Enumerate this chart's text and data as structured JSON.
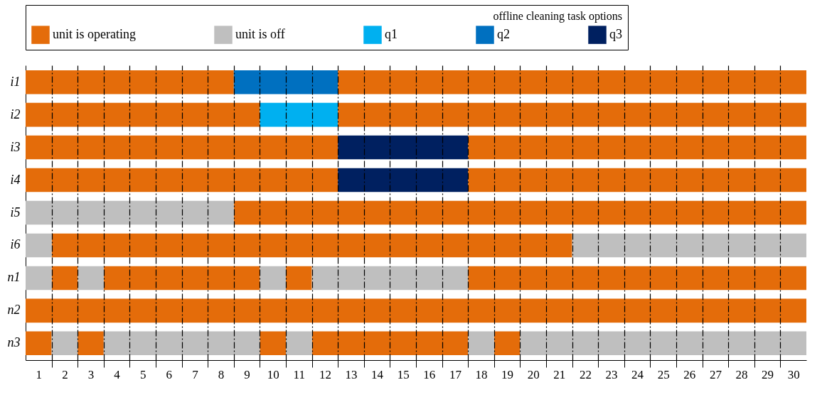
{
  "chart_data": {
    "type": "bar",
    "orientation": "horizontal",
    "legend_title": "offline cleaning task options",
    "legend": "top",
    "grid": "x",
    "categories": [
      "i1",
      "i2",
      "i3",
      "i4",
      "i5",
      "i6",
      "n1",
      "n2",
      "n3"
    ],
    "xlim": [
      0.5,
      30.5
    ],
    "xticks": [
      1,
      2,
      3,
      4,
      5,
      6,
      7,
      8,
      9,
      10,
      11,
      12,
      13,
      14,
      15,
      16,
      17,
      18,
      19,
      20,
      21,
      22,
      23,
      24,
      25,
      26,
      27,
      28,
      29,
      30,
      {
        "value": 1.5,
        "label": null
      },
      {
        "value": 2.5,
        "label": null
      },
      {
        "value": 3.5,
        "label": null
      },
      {
        "value": 4.5,
        "label": null
      },
      {
        "value": 5.5,
        "label": null
      },
      {
        "value": 6.5,
        "label": null
      },
      {
        "value": 7.5,
        "label": null
      },
      {
        "value": 8.5,
        "label": null
      },
      {
        "value": 9.5,
        "label": null
      },
      {
        "value": 10.5,
        "label": null
      },
      {
        "value": 11.5,
        "label": null
      },
      {
        "value": 12.5,
        "label": null
      },
      {
        "value": 13.5,
        "label": null
      },
      {
        "value": 14.5,
        "label": null
      },
      {
        "value": 15.5,
        "label": null
      },
      {
        "value": 16.5,
        "label": null
      },
      {
        "value": 17.5,
        "label": null
      },
      {
        "value": 18.5,
        "label": null
      },
      {
        "value": 19.5,
        "label": null
      },
      {
        "value": 20.5,
        "label": null
      },
      {
        "value": 21.5,
        "label": null
      },
      {
        "value": 22.5,
        "label": null
      },
      {
        "value": 23.5,
        "label": null
      },
      {
        "value": 24.5,
        "label": null
      },
      {
        "value": 25.5,
        "label": null
      },
      {
        "value": 26.5,
        "label": null
      },
      {
        "value": 27.5,
        "label": null
      },
      {
        "value": 28.5,
        "label": null
      },
      {
        "value": 29.5,
        "label": null
      }
    ],
    "series": [
      {
        "name": "unit is operating",
        "color": "#e46c0a",
        "base": [
          0.5,
          0.5,
          0.5,
          0.5,
          8.5,
          1.5,
          1.5,
          0.5,
          0.5
        ],
        "values": [
          8,
          9,
          12,
          12,
          22,
          20,
          1,
          30,
          1
        ]
      },
      {
        "name": "unit is off",
        "color": "#bfbfbf",
        "base": [
          null,
          null,
          null,
          null,
          0.5,
          0.5,
          0.5,
          null,
          1.5
        ],
        "values": [
          null,
          null,
          null,
          null,
          8,
          1,
          1,
          null,
          1
        ]
      },
      {
        "name": "q1",
        "color": "#00b0f0",
        "base": [
          null,
          9.5,
          null,
          null,
          null,
          null,
          null,
          null,
          null
        ],
        "values": [
          null,
          3,
          null,
          null,
          null,
          null,
          null,
          null,
          null
        ]
      },
      {
        "name": "q2",
        "color": "#0070c0",
        "base": [
          8.5,
          null,
          null,
          null,
          null,
          null,
          null,
          null,
          null
        ],
        "values": [
          4,
          null,
          null,
          null,
          null,
          null,
          null,
          null,
          null
        ]
      },
      {
        "name": "q3",
        "color": "#002060",
        "base": [
          null,
          null,
          12.5,
          12.5,
          null,
          null,
          null,
          null,
          null
        ],
        "values": [
          null,
          null,
          5,
          5,
          null,
          null,
          null,
          null,
          null
        ]
      },
      {
        "color": "#e46c0a",
        "base": [
          12.5,
          12.5,
          17.5,
          17.5,
          null,
          null,
          3.5,
          null,
          2.5
        ],
        "values": [
          18,
          18,
          13,
          13,
          null,
          null,
          6,
          null,
          1
        ]
      },
      {
        "color": "#e46c0a",
        "base": [
          null,
          null,
          null,
          null,
          null,
          null,
          10.5,
          null,
          9.5
        ],
        "values": [
          null,
          null,
          null,
          null,
          null,
          null,
          1,
          null,
          1
        ]
      },
      {
        "color": "#e46c0a",
        "base": [
          null,
          null,
          null,
          null,
          null,
          null,
          17.5,
          null,
          11.5
        ],
        "values": [
          null,
          null,
          null,
          null,
          null,
          null,
          13,
          null,
          6
        ]
      },
      {
        "color": "#e46c0a",
        "base": [
          null,
          null,
          null,
          null,
          null,
          null,
          null,
          null,
          18.5
        ],
        "values": [
          null,
          null,
          null,
          null,
          null,
          null,
          null,
          null,
          1
        ]
      },
      {
        "color": "#bfbfbf",
        "base": [
          null,
          null,
          null,
          null,
          null,
          21.5,
          2.5,
          null,
          3.5
        ],
        "values": [
          null,
          null,
          null,
          null,
          null,
          9,
          1,
          null,
          6
        ]
      },
      {
        "color": "#bfbfbf",
        "base": [
          null,
          null,
          null,
          null,
          null,
          null,
          9.5,
          null,
          10.5
        ],
        "values": [
          null,
          null,
          null,
          null,
          null,
          null,
          1,
          null,
          1
        ]
      },
      {
        "color": "#bfbfbf",
        "base": [
          null,
          null,
          null,
          null,
          null,
          null,
          11.5,
          null,
          17.5
        ],
        "values": [
          null,
          null,
          null,
          null,
          null,
          null,
          6,
          null,
          1
        ]
      },
      {
        "color": "#bfbfbf",
        "base": [
          null,
          null,
          null,
          null,
          null,
          null,
          null,
          null,
          19.5
        ],
        "values": [
          null,
          null,
          null,
          null,
          null,
          null,
          null,
          null,
          11
        ]
      }
    ]
  }
}
